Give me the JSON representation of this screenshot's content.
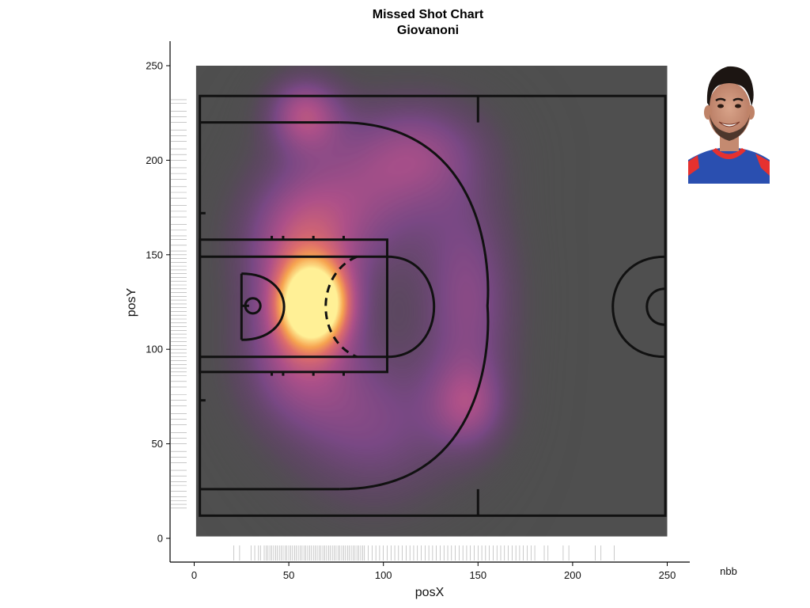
{
  "chart_data": {
    "type": "heatmap",
    "title": "Missed Shot Chart",
    "subtitle": "Giovanoni",
    "xlabel": "posX",
    "ylabel": "posY",
    "caption": "nbb",
    "xlim": [
      -12,
      262
    ],
    "ylim": [
      -12,
      262
    ],
    "x_ticks": [
      0,
      50,
      100,
      150,
      200,
      250
    ],
    "y_ticks": [
      0,
      50,
      100,
      150,
      200,
      250
    ],
    "court_extent": {
      "x": [
        1,
        250
      ],
      "y": [
        1,
        250
      ]
    },
    "density_hotspots": [
      {
        "x": 63,
        "y": 124,
        "sx": 13,
        "sy": 15,
        "w": 1.0
      },
      {
        "x": 55,
        "y": 155,
        "sx": 22,
        "sy": 28,
        "w": 0.45
      },
      {
        "x": 55,
        "y": 95,
        "sx": 22,
        "sy": 26,
        "w": 0.4
      },
      {
        "x": 58,
        "y": 225,
        "sx": 14,
        "sy": 14,
        "w": 0.45
      },
      {
        "x": 145,
        "y": 125,
        "sx": 18,
        "sy": 40,
        "w": 0.35
      },
      {
        "x": 145,
        "y": 70,
        "sx": 14,
        "sy": 16,
        "w": 0.3
      },
      {
        "x": 120,
        "y": 205,
        "sx": 25,
        "sy": 20,
        "w": 0.3
      },
      {
        "x": 90,
        "y": 180,
        "sx": 30,
        "sy": 30,
        "w": 0.3
      },
      {
        "x": 95,
        "y": 60,
        "sx": 30,
        "sy": 30,
        "w": 0.3
      }
    ],
    "rug_x": [
      21,
      24,
      30,
      32,
      34,
      35,
      37,
      38,
      39,
      40,
      41,
      42,
      43,
      44,
      45,
      46,
      47,
      48,
      49,
      50,
      51,
      52,
      53,
      54,
      55,
      56,
      57,
      58,
      59,
      60,
      61,
      62,
      63,
      64,
      65,
      66,
      67,
      68,
      69,
      70,
      71,
      72,
      73,
      74,
      75,
      76,
      77,
      78,
      79,
      80,
      81,
      82,
      83,
      84,
      85,
      86,
      87,
      88,
      89,
      90,
      92,
      94,
      96,
      98,
      100,
      102,
      104,
      106,
      108,
      110,
      112,
      114,
      116,
      118,
      120,
      122,
      124,
      126,
      128,
      130,
      132,
      134,
      136,
      138,
      140,
      142,
      144,
      146,
      148,
      150,
      152,
      154,
      156,
      158,
      160,
      162,
      164,
      166,
      168,
      170,
      172,
      174,
      176,
      178,
      180,
      185,
      187,
      195,
      198,
      212,
      215,
      222
    ],
    "rug_y": [
      16,
      18,
      20,
      22,
      25,
      28,
      30,
      33,
      36,
      40,
      43,
      46,
      50,
      53,
      56,
      60,
      63,
      66,
      70,
      73,
      76,
      80,
      83,
      86,
      88,
      90,
      92,
      94,
      96,
      98,
      100,
      102,
      104,
      106,
      108,
      110,
      112,
      114,
      116,
      118,
      120,
      122,
      124,
      126,
      128,
      130,
      132,
      134,
      136,
      138,
      140,
      142,
      144,
      146,
      148,
      150,
      152,
      155,
      158,
      160,
      163,
      166,
      170,
      173,
      176,
      180,
      183,
      186,
      190,
      193,
      196,
      200,
      203,
      206,
      210,
      213,
      216,
      220,
      223,
      226,
      230,
      232
    ],
    "player_image": "player-headshot"
  }
}
